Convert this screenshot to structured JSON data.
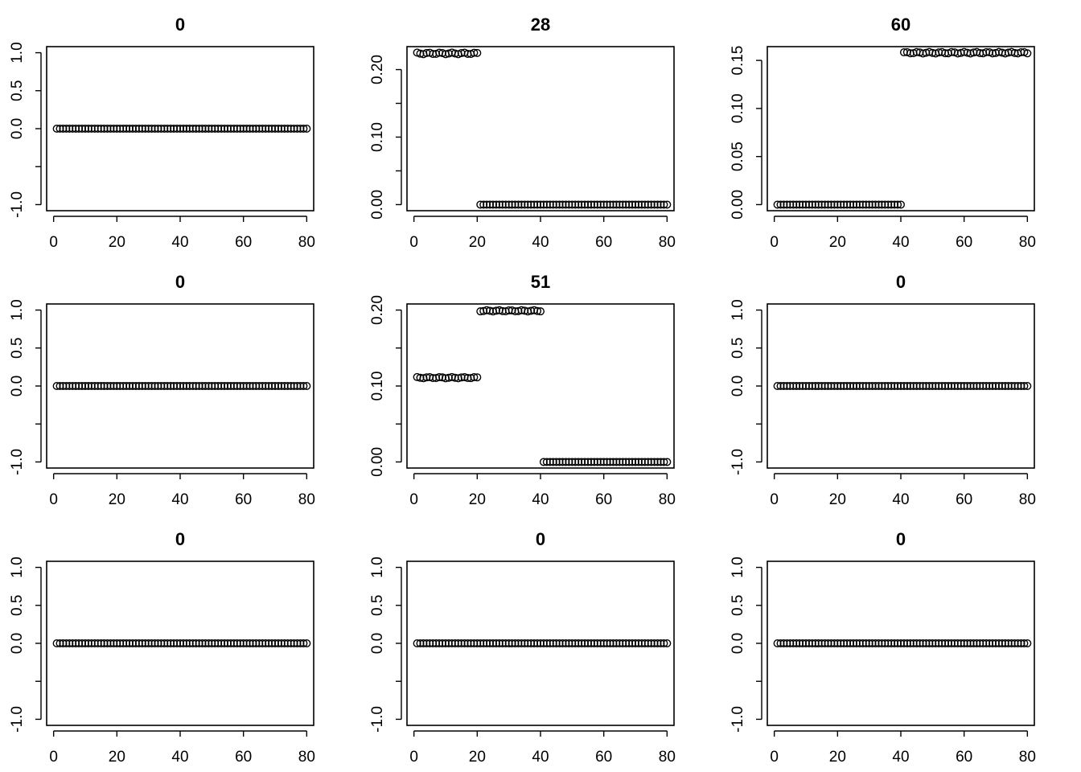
{
  "chart_data": [
    {
      "type": "scatter",
      "title": "0",
      "ylim": [
        -1,
        1
      ],
      "x_ticks": [
        "0",
        "20",
        "40",
        "60",
        "80"
      ],
      "y_ticks": [
        "-1.0",
        "",
        "0.0",
        "0.5",
        "1.0"
      ],
      "y_tick_values": [
        -1,
        -0.5,
        0,
        0.5,
        1
      ],
      "segments": [
        {
          "from": 1,
          "to": 80,
          "y": 0
        }
      ]
    },
    {
      "type": "scatter",
      "title": "28",
      "ylim": [
        0,
        0.225
      ],
      "x_ticks": [
        "0",
        "20",
        "40",
        "60",
        "80"
      ],
      "y_ticks": [
        "0.00",
        "",
        "0.10",
        "",
        "0.20"
      ],
      "y_tick_values": [
        0,
        0.05,
        0.1,
        0.15,
        0.2
      ],
      "segments": [
        {
          "from": 1,
          "to": 20,
          "y": 0.224,
          "jitter": 0.0012
        },
        {
          "from": 21,
          "to": 80,
          "y": 0
        }
      ]
    },
    {
      "type": "scatter",
      "title": "60",
      "ylim": [
        0,
        0.158
      ],
      "x_ticks": [
        "0",
        "20",
        "40",
        "60",
        "80"
      ],
      "y_ticks": [
        "0.00",
        "0.05",
        "0.10",
        "0.15"
      ],
      "y_tick_values": [
        0,
        0.05,
        0.1,
        0.15
      ],
      "segments": [
        {
          "from": 1,
          "to": 40,
          "y": 0
        },
        {
          "from": 41,
          "to": 80,
          "y": 0.158,
          "jitter": 0.0008
        }
      ]
    },
    {
      "type": "scatter",
      "title": "0",
      "ylim": [
        -1,
        1
      ],
      "x_ticks": [
        "0",
        "20",
        "40",
        "60",
        "80"
      ],
      "y_ticks": [
        "-1.0",
        "",
        "0.0",
        "0.5",
        "1.0"
      ],
      "y_tick_values": [
        -1,
        -0.5,
        0,
        0.5,
        1
      ],
      "segments": [
        {
          "from": 1,
          "to": 80,
          "y": 0
        }
      ]
    },
    {
      "type": "scatter",
      "title": "51",
      "ylim": [
        0,
        0.2
      ],
      "x_ticks": [
        "0",
        "20",
        "40",
        "60",
        "80"
      ],
      "y_ticks": [
        "0.00",
        "",
        "0.10",
        "",
        "0.20"
      ],
      "y_tick_values": [
        0,
        0.05,
        0.1,
        0.15,
        0.2
      ],
      "segments": [
        {
          "from": 1,
          "to": 20,
          "y": 0.111,
          "jitter": 0.0008
        },
        {
          "from": 21,
          "to": 40,
          "y": 0.199,
          "jitter": 0.0008
        },
        {
          "from": 41,
          "to": 80,
          "y": 0
        }
      ]
    },
    {
      "type": "scatter",
      "title": "0",
      "ylim": [
        -1,
        1
      ],
      "x_ticks": [
        "0",
        "20",
        "40",
        "60",
        "80"
      ],
      "y_ticks": [
        "-1.0",
        "",
        "0.0",
        "0.5",
        "1.0"
      ],
      "y_tick_values": [
        -1,
        -0.5,
        0,
        0.5,
        1
      ],
      "segments": [
        {
          "from": 1,
          "to": 80,
          "y": 0
        }
      ]
    },
    {
      "type": "scatter",
      "title": "0",
      "ylim": [
        -1,
        1
      ],
      "x_ticks": [
        "0",
        "20",
        "40",
        "60",
        "80"
      ],
      "y_ticks": [
        "-1.0",
        "",
        "0.0",
        "0.5",
        "1.0"
      ],
      "y_tick_values": [
        -1,
        -0.5,
        0,
        0.5,
        1
      ],
      "segments": [
        {
          "from": 1,
          "to": 80,
          "y": 0
        }
      ]
    },
    {
      "type": "scatter",
      "title": "0",
      "ylim": [
        -1,
        1
      ],
      "x_ticks": [
        "0",
        "20",
        "40",
        "60",
        "80"
      ],
      "y_ticks": [
        "-1.0",
        "",
        "0.0",
        "0.5",
        "1.0"
      ],
      "y_tick_values": [
        -1,
        -0.5,
        0,
        0.5,
        1
      ],
      "segments": [
        {
          "from": 1,
          "to": 80,
          "y": 0
        }
      ]
    },
    {
      "type": "scatter",
      "title": "0",
      "ylim": [
        -1,
        1
      ],
      "x_ticks": [
        "0",
        "20",
        "40",
        "60",
        "80"
      ],
      "y_ticks": [
        "-1.0",
        "",
        "0.0",
        "0.5",
        "1.0"
      ],
      "y_tick_values": [
        -1,
        -0.5,
        0,
        0.5,
        1
      ],
      "segments": [
        {
          "from": 1,
          "to": 80,
          "y": 0
        }
      ]
    }
  ]
}
